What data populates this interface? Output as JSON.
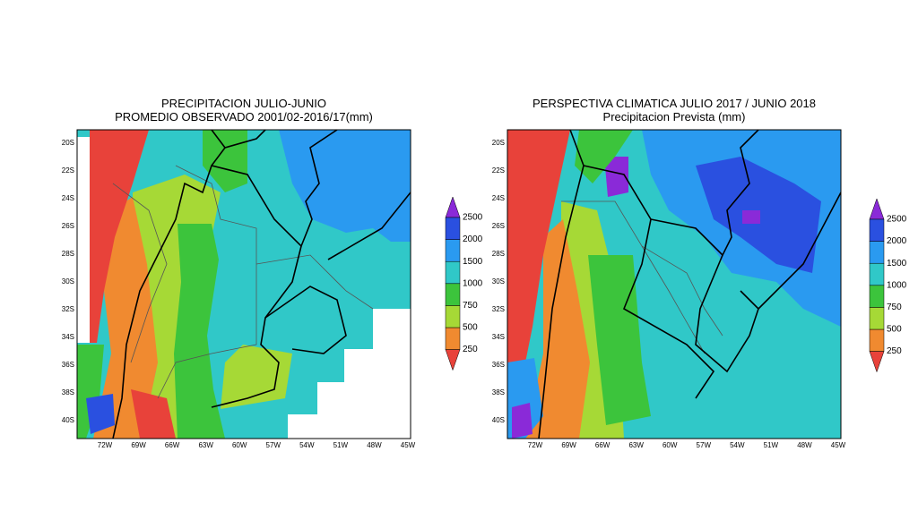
{
  "maps": [
    {
      "title_lines": [
        "PRECIPITACION JULIO-JUNIO",
        "PROMEDIO OBSERVADO 2001/02-2016/17(mm)"
      ],
      "lat_labels": [
        "20S",
        "22S",
        "24S",
        "26S",
        "28S",
        "30S",
        "32S",
        "34S",
        "36S",
        "38S",
        "40S"
      ],
      "lon_labels": [
        "72W",
        "69W",
        "66W",
        "63W",
        "60W",
        "57W",
        "54W",
        "51W",
        "48W",
        "45W"
      ]
    },
    {
      "title_lines": [
        "PERSPECTIVA CLIMATICA JULIO 2017 / JUNIO 2018",
        "Precipitacion Prevista (mm)"
      ],
      "lat_labels": [
        "20S",
        "22S",
        "24S",
        "26S",
        "28S",
        "30S",
        "32S",
        "34S",
        "36S",
        "38S",
        "40S"
      ],
      "lon_labels": [
        "72W",
        "69W",
        "66W",
        "63W",
        "60W",
        "57W",
        "54W",
        "51W",
        "48W",
        "45W"
      ]
    }
  ],
  "colorbar": {
    "levels": [
      250,
      500,
      750,
      1000,
      1500,
      2000,
      2500
    ],
    "colors": [
      "#e8423a",
      "#f08a30",
      "#a6d936",
      "#3cc43c",
      "#30c8c8",
      "#2a9af0",
      "#2a50e0",
      "#8a2ad8"
    ]
  }
}
